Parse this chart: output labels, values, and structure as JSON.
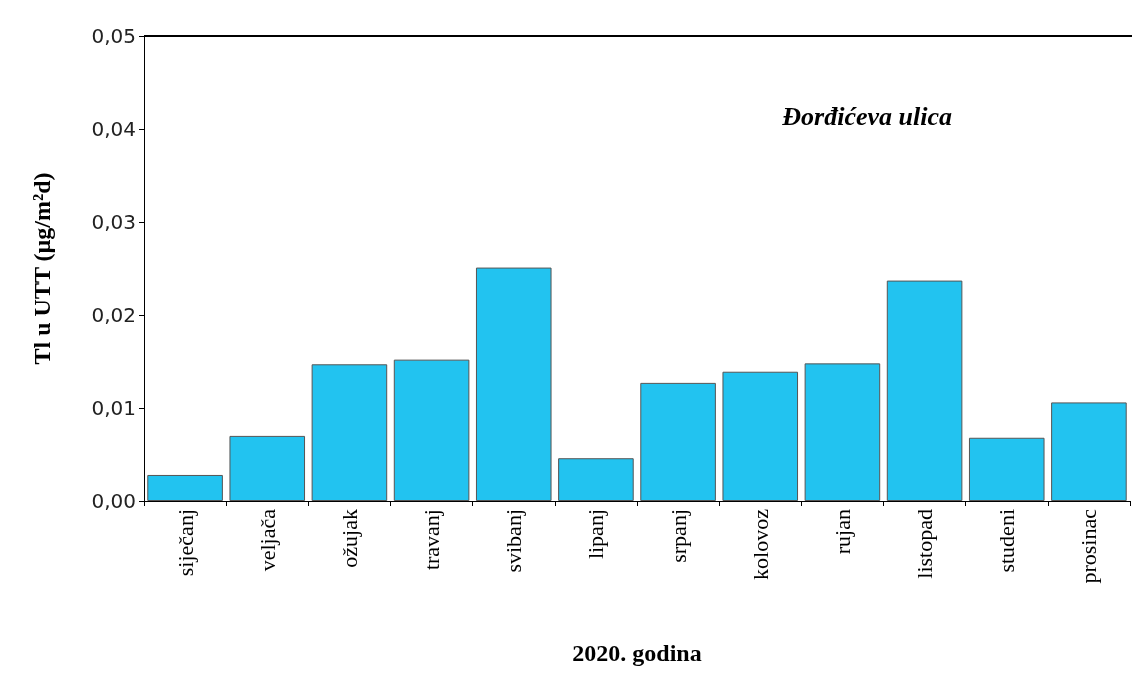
{
  "chart_data": {
    "type": "bar",
    "xlabel": "2020. godina",
    "ylabel": "Tl u UTT (µg/m²d)",
    "categories": [
      "siječanj",
      "veljača",
      "ožujak",
      "travanj",
      "svibanj",
      "lipanj",
      "srpanj",
      "kolovoz",
      "rujan",
      "listopad",
      "studeni",
      "prosinac"
    ],
    "values": [
      0.0028,
      0.007,
      0.0147,
      0.0152,
      0.0251,
      0.0046,
      0.0127,
      0.0139,
      0.0148,
      0.0237,
      0.0068,
      0.0106
    ],
    "color": "#22c3f0",
    "ylim": [
      0,
      0.05
    ],
    "yticks": [
      {
        "value": 0,
        "label": "0,00"
      },
      {
        "value": 0.01,
        "label": "0,01"
      },
      {
        "value": 0.02,
        "label": "0,02"
      },
      {
        "value": 0.03,
        "label": "0,03"
      },
      {
        "value": 0.04,
        "label": "0,04"
      },
      {
        "value": 0.05,
        "label": "0,05"
      }
    ],
    "annotations": [
      "Đorđićeva ulica"
    ],
    "grid": false
  }
}
